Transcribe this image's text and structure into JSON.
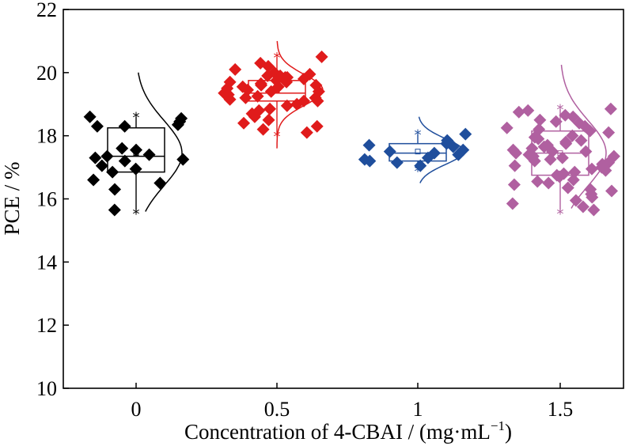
{
  "chart_data": {
    "type": "box-scatter",
    "xlabel": "Concentration of 4-CBAI / (mg·mL",
    "xlabel_sup": "−1",
    "xlabel_tail": ")",
    "ylabel": "PCE / %",
    "ylim": [
      10,
      22
    ],
    "yticks": [
      "10",
      "12",
      "14",
      "16",
      "18",
      "20",
      "22"
    ],
    "ytick_values": [
      10,
      12,
      14,
      16,
      18,
      20,
      22
    ],
    "categories": [
      "0",
      "0.5",
      "1",
      "1.5"
    ],
    "grid": false,
    "legend": "none",
    "series": [
      {
        "category": "0",
        "color": "#000000",
        "box": {
          "q1": 16.85,
          "median": 17.35,
          "q3": 18.25,
          "mean": 17.45
        },
        "whisker": [
          15.65,
          18.6
        ],
        "curve_range": [
          15.6,
          20.0
        ],
        "values": [
          18.35,
          18.55,
          18.6,
          18.3,
          18.45,
          18.3,
          17.6,
          17.55,
          17.4,
          17.35,
          17.3,
          17.25,
          17.2,
          17.05,
          16.95,
          16.85,
          16.6,
          16.5,
          16.3,
          15.65
        ]
      },
      {
        "category": "0.5",
        "color": "#e01b1b",
        "box": {
          "q1": 19.1,
          "median": 19.35,
          "q3": 19.75,
          "mean": 19.45
        },
        "whisker": [
          18.1,
          20.5
        ],
        "curve_range": [
          17.6,
          21.0
        ],
        "values": [
          20.5,
          20.3,
          20.2,
          20.1,
          20.0,
          19.9,
          19.95,
          19.85,
          19.8,
          19.9,
          19.7,
          19.75,
          19.65,
          19.6,
          19.55,
          19.5,
          19.6,
          19.45,
          19.4,
          19.35,
          19.3,
          19.25,
          19.2,
          19.15,
          19.1,
          19.1,
          19.0,
          18.95,
          18.85,
          18.8,
          18.7,
          18.6,
          18.5,
          18.4,
          18.3,
          18.2,
          18.1,
          19.7,
          19.85,
          19.4,
          19.2,
          19.55
        ]
      },
      {
        "category": "1",
        "color": "#1f4e9c",
        "box": {
          "q1": 17.2,
          "median": 17.45,
          "q3": 17.75,
          "mean": 17.5
        },
        "whisker": [
          17.0,
          18.05
        ],
        "curve_range": [
          16.5,
          18.6
        ],
        "values": [
          18.05,
          17.85,
          17.75,
          17.65,
          17.7,
          17.55,
          17.5,
          17.45,
          17.4,
          17.3,
          17.25,
          17.2,
          17.15,
          17.05
        ]
      },
      {
        "category": "1.5",
        "color": "#b060a0",
        "box": {
          "q1": 16.75,
          "median": 17.45,
          "q3": 18.15,
          "mean": 17.45
        },
        "whisker": [
          15.65,
          18.85
        ],
        "curve_range": [
          15.7,
          20.25
        ],
        "values": [
          18.85,
          18.8,
          18.75,
          18.65,
          18.6,
          18.5,
          18.4,
          18.3,
          18.25,
          18.15,
          18.1,
          18.0,
          17.95,
          17.85,
          17.8,
          17.75,
          17.7,
          17.6,
          17.55,
          17.5,
          17.45,
          17.4,
          17.35,
          17.3,
          17.25,
          17.2,
          17.15,
          17.05,
          17.0,
          16.95,
          16.85,
          16.8,
          16.75,
          16.7,
          16.6,
          16.5,
          16.45,
          16.35,
          16.25,
          16.15,
          16.05,
          15.95,
          15.85,
          15.75,
          15.65,
          17.9,
          17.5,
          17.1,
          16.9,
          16.55,
          18.2,
          17.65,
          16.3,
          18.45,
          17.35
        ]
      }
    ]
  }
}
